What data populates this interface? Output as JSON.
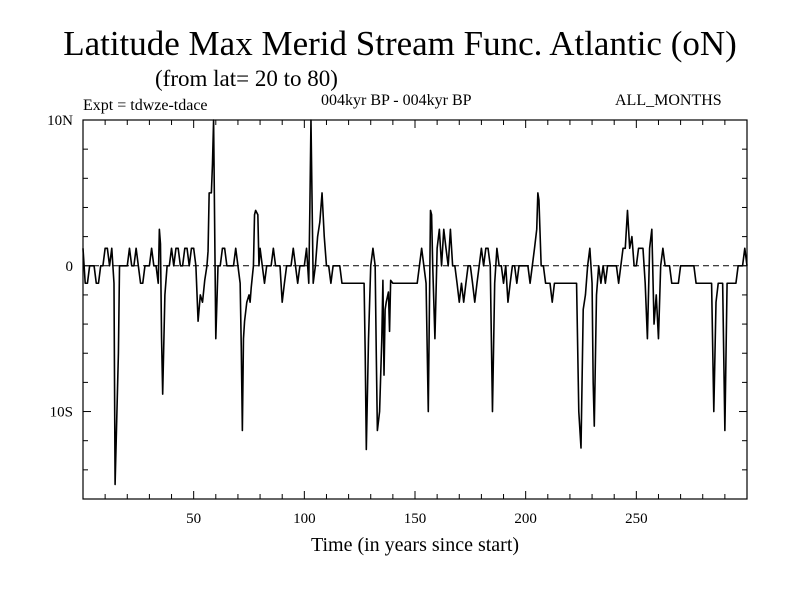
{
  "header": {
    "title": "Latitude Max Merid Stream Func. Atlantic (oN)",
    "subtitle": "(from lat= 20 to 80)",
    "experiment": "Expt = tdwze-tdace",
    "period": "004kyr BP - 004kyr BP",
    "months": "ALL_MONTHS"
  },
  "chart_data": {
    "type": "line",
    "title": "Latitude Max Merid Stream Func. Atlantic (oN)",
    "subtitle": "(from lat= 20 to 80)",
    "xlabel": "Time (in years since start)",
    "ylabel": "",
    "xlim": [
      0,
      300
    ],
    "ylim": [
      -16,
      10
    ],
    "x_ticks": [
      {
        "v": 50,
        "label": "50"
      },
      {
        "v": 100,
        "label": "100"
      },
      {
        "v": 150,
        "label": "150"
      },
      {
        "v": 200,
        "label": "200"
      },
      {
        "v": 250,
        "label": "250"
      }
    ],
    "y_ticks": [
      {
        "v": 10,
        "label": "10N"
      },
      {
        "v": 0,
        "label": "0"
      },
      {
        "v": -10,
        "label": "10S"
      }
    ],
    "zero_line": "dashed",
    "series": [
      {
        "color": "#000000",
        "points": [
          [
            0,
            1.2
          ],
          [
            1,
            -1.2
          ],
          [
            2,
            -1.2
          ],
          [
            3,
            0
          ],
          [
            5,
            0
          ],
          [
            6,
            -1.2
          ],
          [
            7,
            -1.2
          ],
          [
            8,
            0
          ],
          [
            9,
            0
          ],
          [
            10,
            1.2
          ],
          [
            11,
            1.2
          ],
          [
            12,
            0
          ],
          [
            13,
            1.2
          ],
          [
            14,
            -1.2
          ],
          [
            14.5,
            -15
          ],
          [
            15,
            -12
          ],
          [
            16,
            -6
          ],
          [
            16.5,
            0
          ],
          [
            18,
            0
          ],
          [
            20,
            0
          ],
          [
            21,
            1.2
          ],
          [
            22,
            0
          ],
          [
            23,
            0
          ],
          [
            24,
            1.2
          ],
          [
            25,
            0
          ],
          [
            26,
            -1.2
          ],
          [
            27,
            -1.2
          ],
          [
            28,
            0
          ],
          [
            29,
            0
          ],
          [
            30,
            0
          ],
          [
            31,
            1.2
          ],
          [
            32,
            0
          ],
          [
            33,
            0
          ],
          [
            34,
            -1.2
          ],
          [
            34.5,
            2.5
          ],
          [
            35,
            1.5
          ],
          [
            35.5,
            -5
          ],
          [
            36,
            -8.8
          ],
          [
            37,
            -2
          ],
          [
            38,
            0
          ],
          [
            39,
            0
          ],
          [
            40,
            1.2
          ],
          [
            41,
            0
          ],
          [
            42,
            1.2
          ],
          [
            43,
            1.2
          ],
          [
            44,
            0
          ],
          [
            45,
            0
          ],
          [
            46,
            1.2
          ],
          [
            47,
            1.2
          ],
          [
            48,
            0
          ],
          [
            49,
            1.2
          ],
          [
            50,
            1.2
          ],
          [
            51,
            0
          ],
          [
            52,
            -3.8
          ],
          [
            53,
            -2
          ],
          [
            54,
            -2.5
          ],
          [
            55,
            -1
          ],
          [
            56,
            0
          ],
          [
            56.5,
            1
          ],
          [
            57,
            5
          ],
          [
            58,
            5
          ],
          [
            58.5,
            7
          ],
          [
            59,
            10
          ],
          [
            60,
            -5
          ],
          [
            61,
            0
          ],
          [
            62,
            0
          ],
          [
            63,
            1.2
          ],
          [
            64,
            1.2
          ],
          [
            65,
            0
          ],
          [
            66,
            0
          ],
          [
            67,
            0
          ],
          [
            68,
            0
          ],
          [
            69,
            1.2
          ],
          [
            70,
            0
          ],
          [
            71,
            -1.2
          ],
          [
            71.5,
            -5.5
          ],
          [
            72,
            -11.3
          ],
          [
            72.5,
            -5
          ],
          [
            73,
            -3.8
          ],
          [
            74,
            -2.5
          ],
          [
            75,
            -2
          ],
          [
            75.5,
            -2.5
          ],
          [
            76,
            -1.5
          ],
          [
            77,
            0
          ],
          [
            77.5,
            3.5
          ],
          [
            78,
            3.8
          ],
          [
            79,
            3.5
          ],
          [
            79.5,
            0
          ],
          [
            80,
            1.2
          ],
          [
            81,
            0
          ],
          [
            82,
            -1.2
          ],
          [
            83,
            0
          ],
          [
            84,
            0
          ],
          [
            85,
            0
          ],
          [
            86,
            1.2
          ],
          [
            87,
            0
          ],
          [
            88,
            0
          ],
          [
            89,
            0
          ],
          [
            90,
            -2.5
          ],
          [
            91,
            -1.2
          ],
          [
            92,
            0
          ],
          [
            93,
            0
          ],
          [
            94,
            0
          ],
          [
            95,
            1.2
          ],
          [
            96,
            0
          ],
          [
            97,
            -1.2
          ],
          [
            98,
            0
          ],
          [
            99,
            0
          ],
          [
            100,
            0
          ],
          [
            101,
            1.2
          ],
          [
            102,
            -1.2
          ],
          [
            102.5,
            4
          ],
          [
            103,
            10
          ],
          [
            104,
            -1.2
          ],
          [
            105,
            0
          ],
          [
            106,
            2
          ],
          [
            107,
            3
          ],
          [
            108,
            5
          ],
          [
            109,
            2
          ],
          [
            110,
            0
          ],
          [
            111,
            0
          ],
          [
            112,
            -1.2
          ],
          [
            113,
            0
          ],
          [
            114,
            0
          ],
          [
            115,
            0
          ],
          [
            116,
            0
          ],
          [
            117,
            -1.2
          ],
          [
            118,
            -1.2
          ],
          [
            119,
            -1.2
          ],
          [
            120,
            -1.2
          ],
          [
            121,
            -1.2
          ],
          [
            122,
            -1.2
          ],
          [
            123,
            -1.2
          ],
          [
            124,
            -1.2
          ],
          [
            125,
            -1.2
          ],
          [
            126,
            -1.2
          ],
          [
            127,
            -1.2
          ],
          [
            127.5,
            -6
          ],
          [
            128,
            -12.6
          ],
          [
            129,
            -5
          ],
          [
            130,
            0
          ],
          [
            131,
            1.2
          ],
          [
            132,
            0
          ],
          [
            132.5,
            -6
          ],
          [
            133,
            -11.3
          ],
          [
            134,
            -10
          ],
          [
            135,
            -5
          ],
          [
            135.5,
            -1
          ],
          [
            136,
            -7.5
          ],
          [
            136.5,
            -3
          ],
          [
            137,
            -2.5
          ],
          [
            138,
            -1.8
          ],
          [
            138.5,
            -4.5
          ],
          [
            139,
            -1
          ],
          [
            140,
            -1.2
          ],
          [
            141,
            -1.2
          ],
          [
            142,
            -1.2
          ],
          [
            143,
            -1.2
          ],
          [
            144,
            -1.2
          ],
          [
            145,
            -1.2
          ],
          [
            146,
            -1.2
          ],
          [
            147,
            -1.2
          ],
          [
            148,
            -1.2
          ],
          [
            149,
            -1.2
          ],
          [
            150,
            -1.2
          ],
          [
            151,
            -1.2
          ],
          [
            152,
            0
          ],
          [
            153,
            1.2
          ],
          [
            154,
            0
          ],
          [
            155,
            -1.2
          ],
          [
            156,
            -10
          ],
          [
            157,
            3.8
          ],
          [
            157.5,
            3.5
          ],
          [
            158,
            0
          ],
          [
            159,
            -5
          ],
          [
            160,
            1.2
          ],
          [
            161,
            2.5
          ],
          [
            162,
            0
          ],
          [
            163,
            2.5
          ],
          [
            164,
            1.2
          ],
          [
            165,
            0
          ],
          [
            166,
            2.5
          ],
          [
            167,
            0
          ],
          [
            168,
            0
          ],
          [
            169,
            -1.2
          ],
          [
            170,
            -2.5
          ],
          [
            171,
            -1.2
          ],
          [
            172,
            -2.5
          ],
          [
            173,
            -1.2
          ],
          [
            174,
            0
          ],
          [
            175,
            0
          ],
          [
            176,
            -1.2
          ],
          [
            177,
            -2.5
          ],
          [
            178,
            -1.2
          ],
          [
            179,
            0
          ],
          [
            180,
            1.2
          ],
          [
            181,
            0
          ],
          [
            182,
            1.2
          ],
          [
            183,
            1.2
          ],
          [
            184,
            0
          ],
          [
            185,
            -10
          ],
          [
            186,
            -1.2
          ],
          [
            187,
            1.2
          ],
          [
            188,
            0
          ],
          [
            189,
            0
          ],
          [
            190,
            -1.2
          ],
          [
            191,
            0
          ],
          [
            192,
            -2.5
          ],
          [
            193,
            -1.2
          ],
          [
            194,
            0
          ],
          [
            195,
            0
          ],
          [
            196,
            -1.2
          ],
          [
            197,
            0
          ],
          [
            198,
            0
          ],
          [
            199,
            0
          ],
          [
            200,
            0
          ],
          [
            201,
            0
          ],
          [
            202,
            -1.2
          ],
          [
            203,
            0
          ],
          [
            204,
            1.2
          ],
          [
            205,
            2.5
          ],
          [
            205.5,
            5
          ],
          [
            206,
            4.5
          ],
          [
            207,
            0
          ],
          [
            208,
            0
          ],
          [
            209,
            -1.2
          ],
          [
            210,
            -1.2
          ],
          [
            211,
            -1.2
          ],
          [
            212,
            -2.5
          ],
          [
            213,
            -1.2
          ],
          [
            214,
            -1.2
          ],
          [
            215,
            -1.2
          ],
          [
            216,
            -1.2
          ],
          [
            217,
            -1.2
          ],
          [
            218,
            -1.2
          ],
          [
            219,
            -1.2
          ],
          [
            220,
            -1.2
          ],
          [
            221,
            -1.2
          ],
          [
            222,
            -1.2
          ],
          [
            223,
            -1.2
          ],
          [
            224,
            -10
          ],
          [
            225,
            -12.5
          ],
          [
            226,
            -3
          ],
          [
            227,
            -2
          ],
          [
            228,
            0
          ],
          [
            229,
            1.2
          ],
          [
            230,
            -1.2
          ],
          [
            230.5,
            -8
          ],
          [
            231,
            -11
          ],
          [
            232,
            -2
          ],
          [
            233,
            0
          ],
          [
            234,
            -1.2
          ],
          [
            235,
            0
          ],
          [
            236,
            -1.2
          ],
          [
            237,
            0
          ],
          [
            238,
            0
          ],
          [
            239,
            0
          ],
          [
            240,
            0
          ],
          [
            241,
            0
          ],
          [
            242,
            -1.2
          ],
          [
            243,
            0
          ],
          [
            244,
            1.2
          ],
          [
            245,
            1.2
          ],
          [
            246,
            3.8
          ],
          [
            247,
            1.2
          ],
          [
            248,
            2
          ],
          [
            249,
            0
          ],
          [
            250,
            0
          ],
          [
            251,
            1.2
          ],
          [
            252,
            1.2
          ],
          [
            253,
            1.2
          ],
          [
            254,
            -1.2
          ],
          [
            255,
            -5
          ],
          [
            256,
            1.2
          ],
          [
            257,
            2.5
          ],
          [
            258,
            -4
          ],
          [
            259,
            -2
          ],
          [
            260,
            -5
          ],
          [
            261,
            0
          ],
          [
            262,
            1.2
          ],
          [
            263,
            0
          ],
          [
            264,
            0
          ],
          [
            265,
            0
          ],
          [
            266,
            -1.2
          ],
          [
            267,
            -1.2
          ],
          [
            268,
            -1.2
          ],
          [
            269,
            -1.2
          ],
          [
            270,
            0
          ],
          [
            271,
            0
          ],
          [
            272,
            0
          ],
          [
            273,
            0
          ],
          [
            274,
            0
          ],
          [
            275,
            0
          ],
          [
            276,
            0
          ],
          [
            277,
            -1.2
          ],
          [
            278,
            -1.2
          ],
          [
            279,
            -1.2
          ],
          [
            280,
            -1.2
          ],
          [
            281,
            -1.2
          ],
          [
            282,
            -1.2
          ],
          [
            283,
            -1.2
          ],
          [
            284,
            -1.2
          ],
          [
            285,
            -10
          ],
          [
            286,
            -2.5
          ],
          [
            287,
            -1.2
          ],
          [
            288,
            -1.2
          ],
          [
            289,
            -1.2
          ],
          [
            290,
            -11.3
          ],
          [
            291,
            -1.2
          ],
          [
            292,
            -1.2
          ],
          [
            293,
            -1.2
          ],
          [
            294,
            -1.2
          ],
          [
            295,
            -1.2
          ],
          [
            296,
            0
          ],
          [
            297,
            0
          ],
          [
            298,
            0
          ],
          [
            299,
            1.2
          ],
          [
            300,
            0
          ]
        ]
      }
    ]
  }
}
